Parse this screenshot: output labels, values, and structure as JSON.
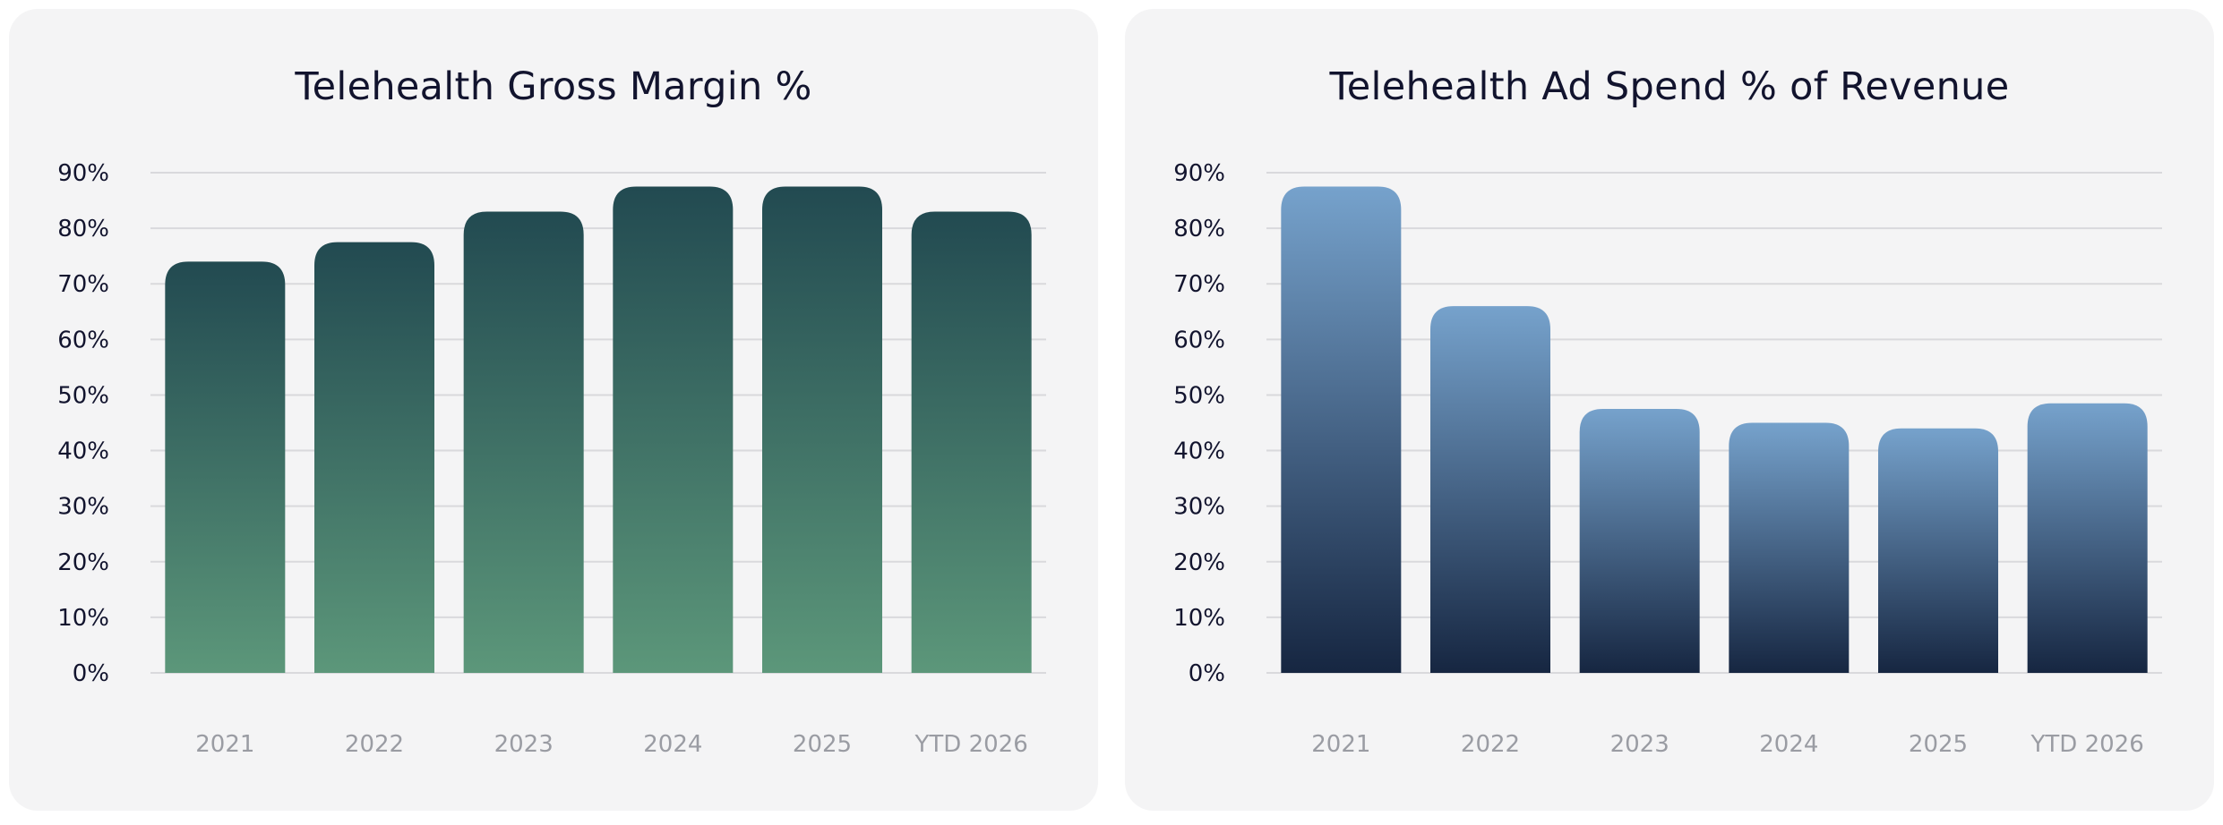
{
  "chart_data": [
    {
      "type": "bar",
      "title": "Telehealth Gross Margin %",
      "categories": [
        "2021",
        "2022",
        "2023",
        "2024",
        "2025",
        "YTD 2026"
      ],
      "values": [
        74,
        77.5,
        83,
        87.5,
        87.5,
        83
      ],
      "ylim": [
        0,
        90
      ],
      "yticks": [
        "0%",
        "10%",
        "20%",
        "30%",
        "40%",
        "50%",
        "60%",
        "70%",
        "80%",
        "90%"
      ],
      "grid": true,
      "colors": {
        "top": "#224a51",
        "bottom": "#5c977a"
      }
    },
    {
      "type": "bar",
      "title": "Telehealth Ad Spend % of Revenue",
      "categories": [
        "2021",
        "2022",
        "2023",
        "2024",
        "2025",
        "YTD 2026"
      ],
      "values": [
        87.5,
        66,
        47.5,
        45,
        44,
        48.5
      ],
      "ylim": [
        0,
        90
      ],
      "yticks": [
        "0%",
        "10%",
        "20%",
        "30%",
        "40%",
        "50%",
        "60%",
        "70%",
        "80%",
        "90%"
      ],
      "grid": true,
      "colors": {
        "top": "#76a2cc",
        "bottom": "#162641"
      }
    }
  ]
}
